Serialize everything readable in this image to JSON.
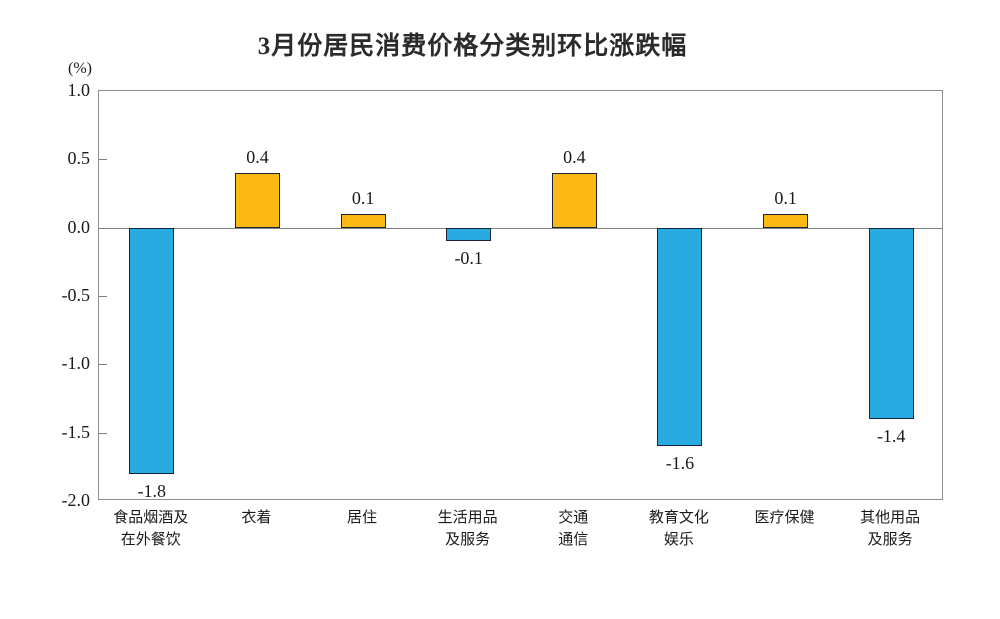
{
  "page": {
    "background": "#FFFFFF"
  },
  "chart_data": {
    "type": "bar",
    "title": "3月份居民消费价格分类别环比涨跌幅",
    "ylabel": "(%)",
    "xlabel": "",
    "ylim": [
      -2.0,
      1.0
    ],
    "yticks": [
      "1.0",
      "0.5",
      "0.0",
      "-0.5",
      "-1.0",
      "-1.5",
      "-2.0"
    ],
    "ytick_values": [
      1.0,
      0.5,
      0.0,
      -0.5,
      -1.0,
      -1.5,
      -2.0
    ],
    "grid": false,
    "legend_position": "none",
    "categories": [
      "食品烟酒及\n在外餐饮",
      "衣着",
      "居住",
      "生活用品\n及服务",
      "交通\n通信",
      "教育文化\n娱乐",
      "医疗保健",
      "其他用品\n及服务"
    ],
    "values": [
      -1.8,
      0.4,
      0.1,
      -0.1,
      0.4,
      -1.6,
      0.1,
      -1.4
    ],
    "value_labels": [
      "-1.8",
      "0.4",
      "0.1",
      "-0.1",
      "0.4",
      "-1.6",
      "0.1",
      "-1.4"
    ],
    "colors": {
      "positive": "#FDB813",
      "negative": "#29ABE2",
      "bar_border": "#1A2433",
      "axis": "#8E8E8E",
      "zero_line": "#808080",
      "text": "#1A1A1A"
    }
  }
}
